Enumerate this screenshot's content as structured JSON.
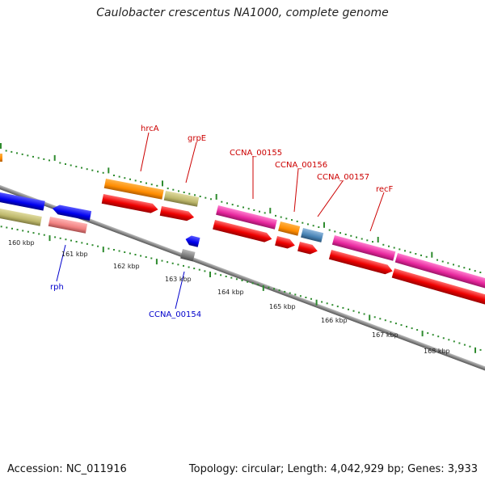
{
  "title": "Caulobacter crescentus NA1000, complete genome",
  "footer": {
    "accession": "Accession: NC_011916",
    "summary": "Topology: circular; Length: 4,042,929 bp; Genes: 3,933"
  },
  "colors": {
    "backbone": "#8a8a8a",
    "tick": "#2e8b2e",
    "label_forward": "#cc0000",
    "label_reverse": "#0000cc"
  },
  "scale_labels": [
    "160 kbp",
    "161 kbp",
    "162 kbp",
    "163 kbp",
    "164 kbp",
    "165 kbp",
    "166 kbp",
    "167 kbp",
    "168 kbp"
  ],
  "genes": [
    {
      "name": "hrcA",
      "strand": "forward",
      "color": "#cc0000"
    },
    {
      "name": "grpE",
      "strand": "forward",
      "color": "#cc0000"
    },
    {
      "name": "CCNA_00155",
      "strand": "forward",
      "color": "#cc0000"
    },
    {
      "name": "CCNA_00156",
      "strand": "forward",
      "color": "#cc0000"
    },
    {
      "name": "CCNA_00157",
      "strand": "forward",
      "color": "#cc0000"
    },
    {
      "name": "recF",
      "strand": "forward",
      "color": "#cc0000"
    },
    {
      "name": "rph",
      "strand": "reverse",
      "color": "#0000cc"
    },
    {
      "name": "CCNA_00154",
      "strand": "reverse",
      "color": "#0000cc"
    }
  ],
  "feature_colors": {
    "orange": "#ff8c00",
    "khaki": "#bdb76b",
    "magenta": "#e6259c",
    "red": "#ee0000",
    "blue": "#0000ee",
    "salmon": "#f08080",
    "steelblue": "#4682b4",
    "gray": "#7a7a7a"
  }
}
